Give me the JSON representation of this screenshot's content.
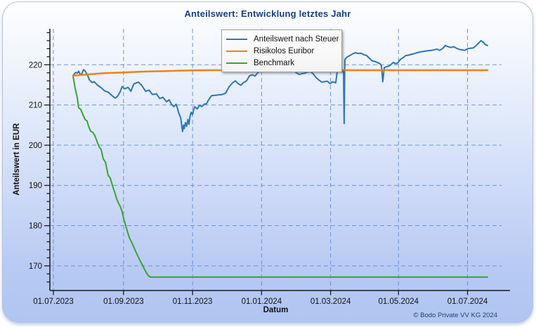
{
  "page": {
    "title": "Anteilswert: Entwicklung letztes Jahr",
    "copyright": "© Bodo Private VV KG 2024"
  },
  "chart_data": {
    "type": "line",
    "title": "Anteilswert: Entwicklung letztes Jahr",
    "xlabel": "Datum",
    "ylabel": "Anteilswert in EUR",
    "x_unit": "days since 01.07.2023",
    "xlim": [
      0,
      396
    ],
    "ylim": [
      164,
      229
    ],
    "grid": "dashed",
    "grid_color": "#6f93d6",
    "axis_color": "#1a1a1a",
    "legend_position": "top-center-inside",
    "x_ticks": [
      {
        "day": 0,
        "label": "01.07.2023"
      },
      {
        "day": 62,
        "label": "01.09.2023"
      },
      {
        "day": 123,
        "label": "01.11.2023"
      },
      {
        "day": 184,
        "label": "01.01.2024"
      },
      {
        "day": 245,
        "label": "01.03.2024"
      },
      {
        "day": 305,
        "label": "01.05.2024"
      },
      {
        "day": 366,
        "label": "01.07.2024"
      }
    ],
    "y_ticks": [
      170,
      180,
      190,
      200,
      210,
      220
    ],
    "y_minor_tick_step": 2,
    "series": [
      {
        "name": "Anteilswert nach Steuer",
        "color": "#2e75b8",
        "width": 2,
        "points": [
          [
            17.4,
            217.2
          ],
          [
            18.6,
            217.8
          ],
          [
            19.9,
            218.1
          ],
          [
            21.1,
            217.9
          ],
          [
            22.3,
            218.4
          ],
          [
            23.6,
            217.7
          ],
          [
            24.8,
            217.6
          ],
          [
            26.7,
            218.8
          ],
          [
            27.9,
            218.5
          ],
          [
            28.6,
            218.2
          ],
          [
            30.4,
            217.3
          ],
          [
            31.7,
            216.3
          ],
          [
            34.1,
            215.6
          ],
          [
            36,
            215.8
          ],
          [
            39.1,
            214.9
          ],
          [
            42.2,
            214.3
          ],
          [
            45.3,
            213.5
          ],
          [
            48.4,
            213.2
          ],
          [
            51.5,
            212.4
          ],
          [
            54.6,
            211.7
          ],
          [
            56.5,
            212.1
          ],
          [
            58.9,
            213.2
          ],
          [
            60.8,
            214.6
          ],
          [
            63,
            214
          ],
          [
            66,
            214.4
          ],
          [
            68.5,
            213.4
          ],
          [
            71,
            215.2
          ],
          [
            75,
            215.7
          ],
          [
            78,
            214.9
          ],
          [
            81.5,
            213.4
          ],
          [
            84.5,
            213.7
          ],
          [
            87.6,
            212.6
          ],
          [
            91,
            212.8
          ],
          [
            94,
            211.6
          ],
          [
            96.8,
            211.9
          ],
          [
            100,
            210.8
          ],
          [
            102.3,
            211.3
          ],
          [
            104.3,
            210.2
          ],
          [
            106.4,
            209.6
          ],
          [
            108.4,
            210.2
          ],
          [
            109.5,
            209.3
          ],
          [
            110.5,
            208.2
          ],
          [
            112.6,
            206.7
          ],
          [
            113.6,
            204.4
          ],
          [
            114.2,
            203.4
          ],
          [
            115,
            205
          ],
          [
            115.6,
            204.1
          ],
          [
            116.7,
            205.6
          ],
          [
            117.7,
            204.7
          ],
          [
            118.8,
            206.4
          ],
          [
            119.8,
            205.2
          ],
          [
            120.8,
            207.3
          ],
          [
            121.9,
            208.2
          ],
          [
            122.9,
            207.6
          ],
          [
            124,
            208.8
          ],
          [
            125,
            209.6
          ],
          [
            127,
            209
          ],
          [
            129.1,
            209.9
          ],
          [
            131.2,
            209.6
          ],
          [
            133.3,
            210.2
          ],
          [
            135.3,
            210.3
          ],
          [
            137,
            211.2
          ],
          [
            139.7,
            212.3
          ],
          [
            142.8,
            212.4
          ],
          [
            145.9,
            212.5
          ],
          [
            149,
            212.6
          ],
          [
            152.1,
            212.9
          ],
          [
            155.2,
            214.5
          ],
          [
            158.3,
            215.5
          ],
          [
            160.8,
            216
          ],
          [
            163.3,
            215.3
          ],
          [
            165.7,
            214.9
          ],
          [
            168.2,
            215.6
          ],
          [
            170.7,
            216
          ],
          [
            173.2,
            217.2
          ],
          [
            175.7,
            217.5
          ],
          [
            178.2,
            217.2
          ],
          [
            180.6,
            218
          ],
          [
            183.1,
            218.6
          ],
          [
            185.6,
            218.5
          ],
          [
            188.1,
            218.3
          ],
          [
            190.6,
            218.6
          ],
          [
            193,
            218.7
          ],
          [
            196.2,
            219
          ],
          [
            199.3,
            219.2
          ],
          [
            201.7,
            218.8
          ],
          [
            204.2,
            219
          ],
          [
            206.7,
            219.2
          ],
          [
            209.8,
            219.3
          ],
          [
            212.3,
            218.5
          ],
          [
            214.8,
            218
          ],
          [
            217.3,
            217.6
          ],
          [
            219.7,
            217.8
          ],
          [
            222.2,
            217.9
          ],
          [
            224.7,
            218.2
          ],
          [
            227.2,
            218.3
          ],
          [
            229.7,
            217.7
          ],
          [
            232.2,
            216.8
          ],
          [
            234.6,
            216.2
          ],
          [
            237.1,
            215.7
          ],
          [
            239.6,
            215.8
          ],
          [
            242.1,
            215.9
          ],
          [
            244.6,
            215.3
          ],
          [
            247,
            215.8
          ],
          [
            249.5,
            215.5
          ],
          [
            250.8,
            218.3
          ],
          [
            253.3,
            218.4
          ],
          [
            255.1,
            218.2
          ],
          [
            256.4,
            218.3
          ],
          [
            257,
            205.4
          ],
          [
            257.6,
            221.3
          ],
          [
            259.5,
            221.9
          ],
          [
            262,
            222.3
          ],
          [
            264.4,
            222.7
          ],
          [
            266.9,
            223
          ],
          [
            269.4,
            222.8
          ],
          [
            271.9,
            222.9
          ],
          [
            274.4,
            222.5
          ],
          [
            276.8,
            222.3
          ],
          [
            279.3,
            221.6
          ],
          [
            281.8,
            221
          ],
          [
            284.3,
            220.8
          ],
          [
            286.8,
            220.5
          ],
          [
            288.6,
            220.3
          ],
          [
            289.9,
            219.8
          ],
          [
            291.1,
            215.8
          ],
          [
            292.4,
            219.3
          ],
          [
            294.2,
            219.5
          ],
          [
            296.7,
            219.7
          ],
          [
            298.6,
            220.1
          ],
          [
            300.4,
            220.6
          ],
          [
            302.3,
            220.3
          ],
          [
            304.2,
            220.4
          ],
          [
            306.6,
            221.3
          ],
          [
            309.1,
            221.8
          ],
          [
            311.6,
            222.3
          ],
          [
            314.1,
            222.4
          ],
          [
            316.6,
            222.6
          ],
          [
            319.1,
            222.8
          ],
          [
            321.5,
            223
          ],
          [
            324,
            223.2
          ],
          [
            326.5,
            223.3
          ],
          [
            329,
            223.4
          ],
          [
            331.5,
            223.5
          ],
          [
            333.9,
            223.6
          ],
          [
            336.4,
            223.7
          ],
          [
            338.9,
            223.9
          ],
          [
            341.4,
            223.6
          ],
          [
            343.9,
            224
          ],
          [
            346.4,
            224.8
          ],
          [
            348.8,
            224.5
          ],
          [
            351.3,
            224.3
          ],
          [
            353.8,
            224.5
          ],
          [
            356.3,
            224.1
          ],
          [
            358.8,
            223.8
          ],
          [
            361.3,
            223.7
          ],
          [
            363.7,
            223.6
          ],
          [
            366.2,
            224
          ],
          [
            368.7,
            224.1
          ],
          [
            371.2,
            224.2
          ],
          [
            373.7,
            224.8
          ],
          [
            376.2,
            225.5
          ],
          [
            378,
            226
          ],
          [
            379.9,
            225.6
          ],
          [
            381.7,
            225
          ],
          [
            383.6,
            224.8
          ]
        ]
      },
      {
        "name": "Risikolos Euribor",
        "color": "#f08019",
        "width": 2.5,
        "points": [
          [
            17.4,
            217.3
          ],
          [
            30,
            217.6
          ],
          [
            45,
            217.9
          ],
          [
            62,
            218.1
          ],
          [
            80,
            218.3
          ],
          [
            100,
            218.45
          ],
          [
            123,
            218.6
          ],
          [
            140,
            218.65
          ],
          [
            383.6,
            218.65
          ]
        ]
      },
      {
        "name": "Benchmark",
        "color": "#39a335",
        "width": 2,
        "points": [
          [
            17.4,
            217.2
          ],
          [
            19.2,
            214.2
          ],
          [
            21.1,
            211.8
          ],
          [
            22.3,
            209.3
          ],
          [
            24.2,
            208.9
          ],
          [
            26.1,
            207.6
          ],
          [
            28,
            206.4
          ],
          [
            29.8,
            206
          ],
          [
            31.1,
            204.7
          ],
          [
            32.9,
            203.5
          ],
          [
            34.8,
            203.2
          ],
          [
            36.6,
            202.4
          ],
          [
            38.5,
            201
          ],
          [
            40.4,
            199.6
          ],
          [
            42.2,
            198.9
          ],
          [
            44.1,
            196.6
          ],
          [
            46,
            195.8
          ],
          [
            48.4,
            192.5
          ],
          [
            50.3,
            191.8
          ],
          [
            52.6,
            189.6
          ],
          [
            54.5,
            188
          ],
          [
            55.9,
            186.7
          ],
          [
            57.7,
            185.5
          ],
          [
            58.9,
            184.9
          ],
          [
            60.8,
            183.5
          ],
          [
            61.9,
            182
          ],
          [
            64.5,
            179.4
          ],
          [
            67,
            177.1
          ],
          [
            70.1,
            175.3
          ],
          [
            73.2,
            173.3
          ],
          [
            76.3,
            171.5
          ],
          [
            79.4,
            169.8
          ],
          [
            81.5,
            168.6
          ],
          [
            83.8,
            167.6
          ],
          [
            85.7,
            167.2
          ],
          [
            383.6,
            167.2
          ]
        ]
      }
    ]
  }
}
